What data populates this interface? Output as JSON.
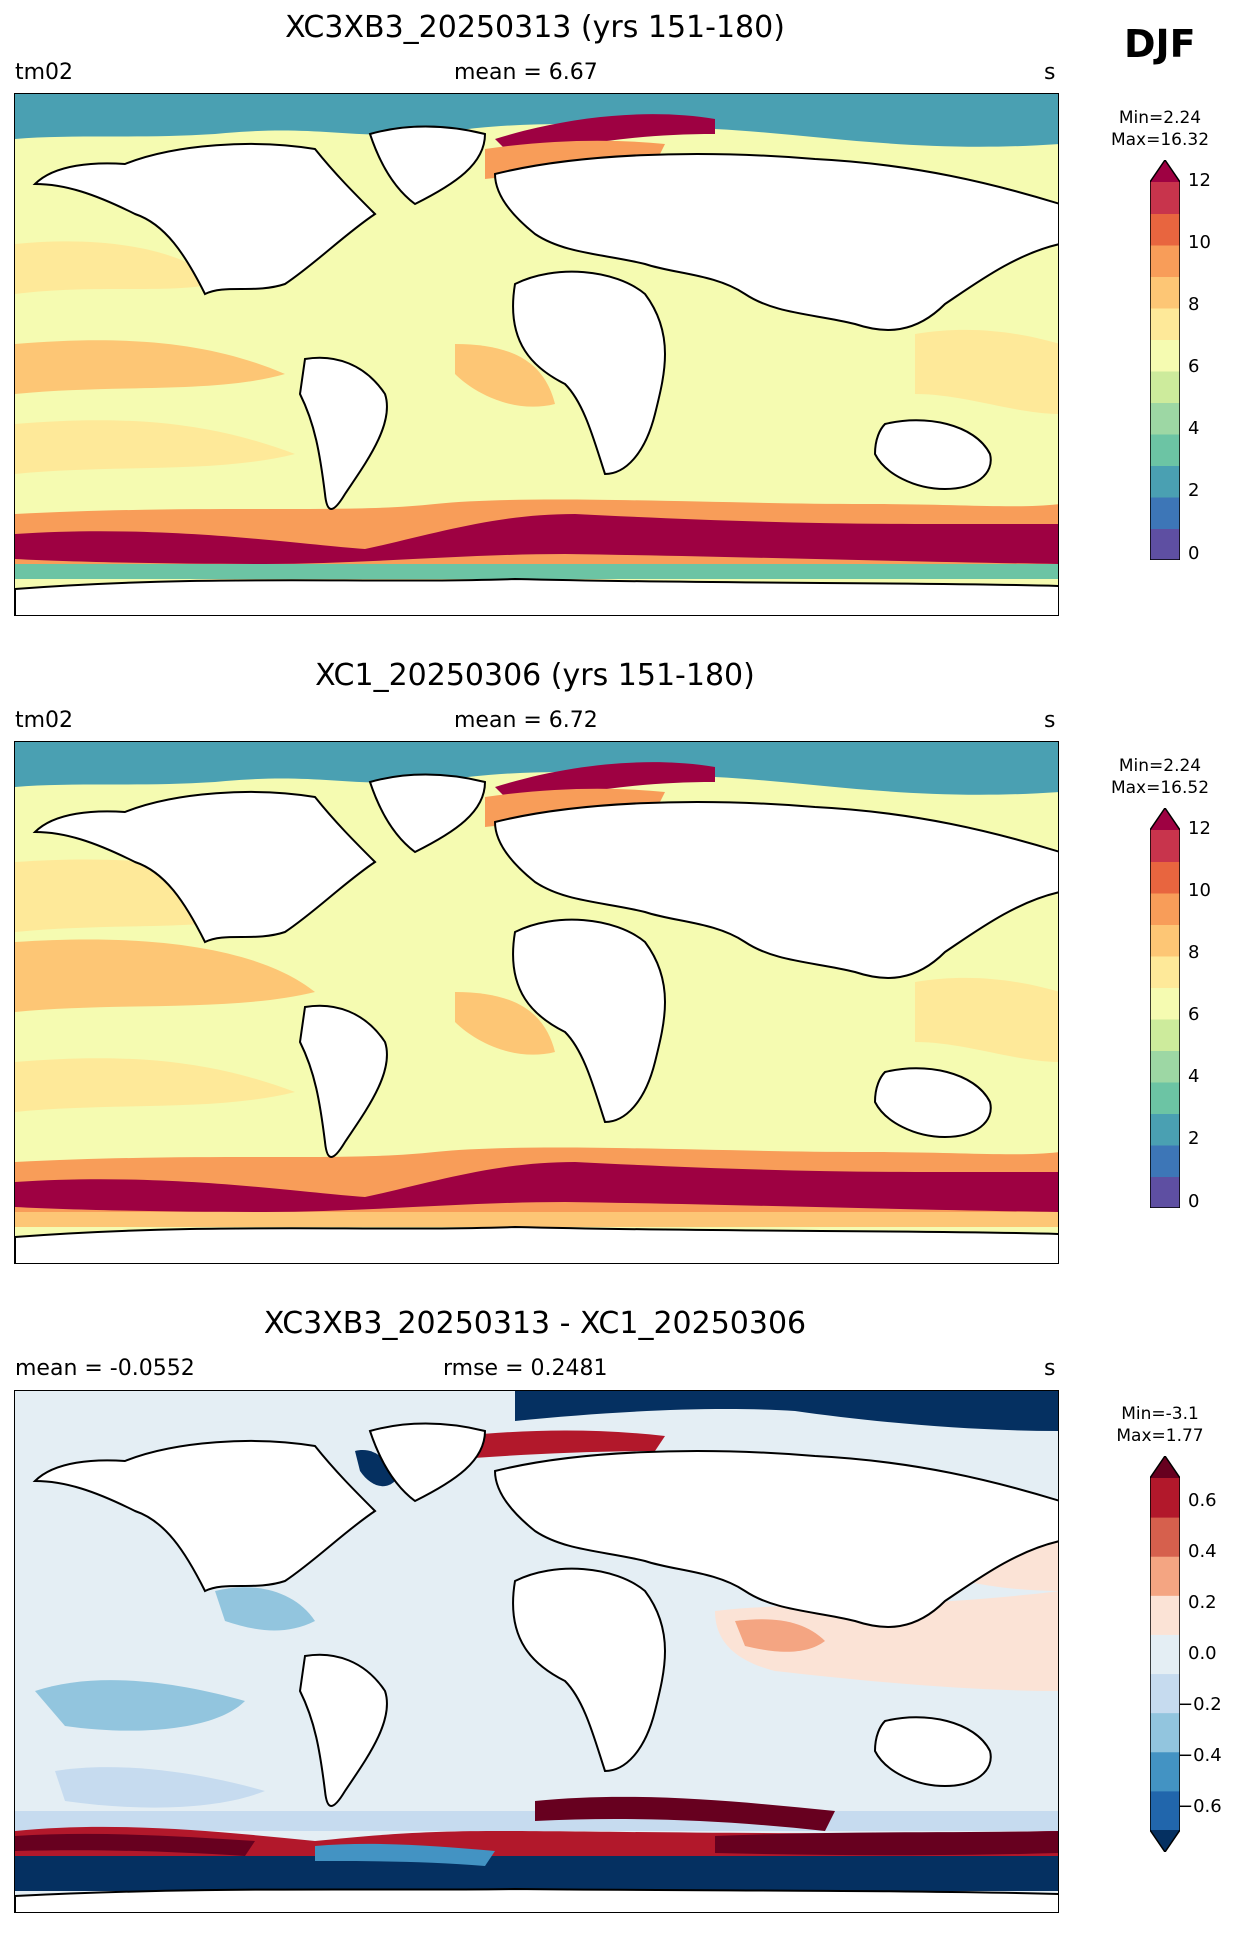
{
  "season": "DJF",
  "panels": [
    {
      "title": "XC3XB3_20250313 (yrs 151-180)",
      "left_label": "tm02",
      "center_label": "mean = 6.67",
      "right_label": "s",
      "stats_min": "Min=2.24",
      "stats_max": "Max=16.32",
      "colorbar_ticks": [
        "12",
        "10",
        "8",
        "6",
        "4",
        "2",
        "0"
      ]
    },
    {
      "title": "XC1_20250306 (yrs 151-180)",
      "left_label": "tm02",
      "center_label": "mean = 6.72",
      "right_label": "s",
      "stats_min": "Min=2.24",
      "stats_max": "Max=16.52",
      "colorbar_ticks": [
        "12",
        "10",
        "8",
        "6",
        "4",
        "2",
        "0"
      ]
    },
    {
      "title": "XC3XB3_20250313 - XC1_20250306",
      "left_label": "mean = -0.0552",
      "center_label": "rmse = 0.2481",
      "right_label": "s",
      "stats_min": "Min=-3.1",
      "stats_max": "Max=1.77",
      "colorbar_ticks": [
        "0.6",
        "0.4",
        "0.2",
        "0.0",
        "−0.2",
        "−0.4",
        "−0.6"
      ]
    }
  ],
  "colormaps": {
    "spectral": [
      "#5e4fa2",
      "#3d76b7",
      "#4aa0b2",
      "#6cc4a4",
      "#9dd7a4",
      "#cdeb9c",
      "#f5fbb1",
      "#fee999",
      "#fdc675",
      "#f89d59",
      "#e8653f",
      "#c8344c",
      "#9e0142"
    ],
    "rdbu": [
      "#053061",
      "#2166ac",
      "#4393c3",
      "#92c5de",
      "#c6dbef",
      "#e4eef4",
      "#fbe3d6",
      "#f4a582",
      "#d6604d",
      "#b2182b",
      "#67001f"
    ]
  }
}
